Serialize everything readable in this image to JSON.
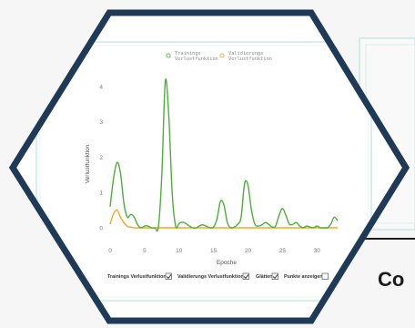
{
  "chart_data": {
    "type": "line",
    "xlabel": "Epoche",
    "ylabel": "Verlustfunktion",
    "xlim": [
      -0.5,
      33.5
    ],
    "ylim": [
      -0.3,
      4.5
    ],
    "x_ticks": [
      0,
      5,
      10,
      15,
      20,
      25,
      30
    ],
    "y_ticks": [
      0,
      1,
      2,
      3,
      4
    ],
    "grid": false,
    "legend_position": "top-center",
    "series": [
      {
        "name": "Trainings Verlustfunktion",
        "color": "#4caf3a",
        "x": [
          0,
          0.5,
          1,
          1.5,
          2,
          2.5,
          3,
          3.5,
          4,
          4.5,
          5,
          5.5,
          6,
          6.5,
          7,
          7.5,
          8,
          8.5,
          9,
          9.5,
          10,
          10.5,
          11,
          11.5,
          12,
          12.5,
          13,
          13.5,
          14,
          14.5,
          15,
          15.5,
          16,
          16.5,
          17,
          17.5,
          18,
          18.5,
          19,
          19.5,
          20,
          20.5,
          21,
          21.5,
          22,
          22.5,
          23,
          23.5,
          24,
          24.5,
          25,
          25.5,
          26,
          26.5,
          27,
          27.5,
          28,
          28.5,
          29,
          29.5,
          30,
          30.5,
          31,
          31.5,
          32,
          32.5,
          33
        ],
        "values": [
          0.6,
          1.4,
          1.85,
          1.55,
          0.7,
          0.3,
          0.38,
          0.3,
          0.08,
          0.0,
          0.05,
          0.05,
          0.0,
          0.0,
          0.02,
          1.5,
          4.15,
          3.2,
          1.0,
          0.05,
          0.12,
          0.16,
          0.12,
          0.05,
          0.0,
          0.0,
          0.06,
          0.08,
          0.04,
          0.0,
          0.02,
          0.25,
          0.75,
          0.65,
          0.15,
          0.0,
          0.02,
          0.1,
          0.3,
          1.25,
          1.2,
          0.5,
          0.1,
          0.05,
          0.08,
          0.15,
          0.1,
          0.02,
          0.05,
          0.35,
          0.55,
          0.35,
          0.1,
          0.1,
          0.15,
          0.05,
          0.0,
          0.05,
          0.02,
          0.0,
          0.05,
          0.0,
          0.0,
          0.0,
          0.1,
          0.3,
          0.2
        ]
      },
      {
        "name": "Validierungs Verlustfunktion",
        "color": "#f5a623",
        "x": [
          0,
          0.5,
          1,
          1.5,
          2,
          2.5,
          3,
          3.5,
          4,
          5,
          6,
          7,
          8,
          10,
          12,
          14,
          16,
          18,
          20,
          22,
          24,
          26,
          28,
          30,
          32,
          33
        ],
        "values": [
          0.1,
          0.4,
          0.5,
          0.3,
          0.15,
          0.04,
          0.02,
          0.0,
          0.0,
          0.0,
          0.0,
          0.0,
          0.0,
          0.0,
          0.0,
          0.0,
          0.0,
          0.0,
          0.0,
          0.0,
          0.0,
          0.0,
          0.0,
          0.0,
          0.0,
          0.0
        ]
      }
    ],
    "controls": [
      {
        "label": "Trainings Verlustfunktion",
        "checked": true
      },
      {
        "label": "Validierungs Verlustfunktion",
        "checked": true
      },
      {
        "label": "Glätten",
        "checked": true
      },
      {
        "label": "Punkte anzeigen",
        "checked": false
      }
    ]
  },
  "legend_lines": {
    "training": [
      "Trainings",
      "Verlustfunktion"
    ],
    "validation": [
      "Validierungs",
      "Verlustfunktion"
    ]
  },
  "caption": "Co",
  "colors": {
    "hexagon_border": "#1f3a57",
    "page_background": "#f6f6f6",
    "panel_border": "#bfe3dc"
  }
}
